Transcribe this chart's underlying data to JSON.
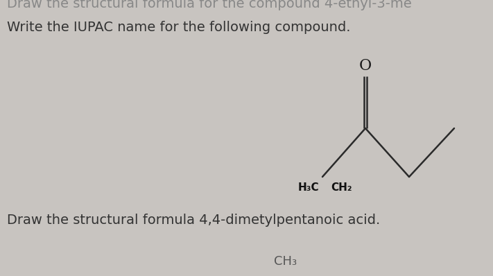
{
  "background_color": "#c8c4c0",
  "top_text": "Draw the structural formula for the compound 4-ethyl-3-me",
  "question1": "Write the IUPAC name for the following compound.",
  "question2": "Draw the structural formula 4,4-dimetylpentanoic acid.",
  "bottom_partial": "CH₃",
  "molecule": {
    "label_h3c": "H₃C",
    "label_ch2": "CH₂",
    "oxygen_label": "O"
  },
  "font_size_text": 14,
  "font_size_molecule": 12,
  "text_color": "#333333",
  "line_color": "#2a2a2a",
  "line_width": 1.8
}
